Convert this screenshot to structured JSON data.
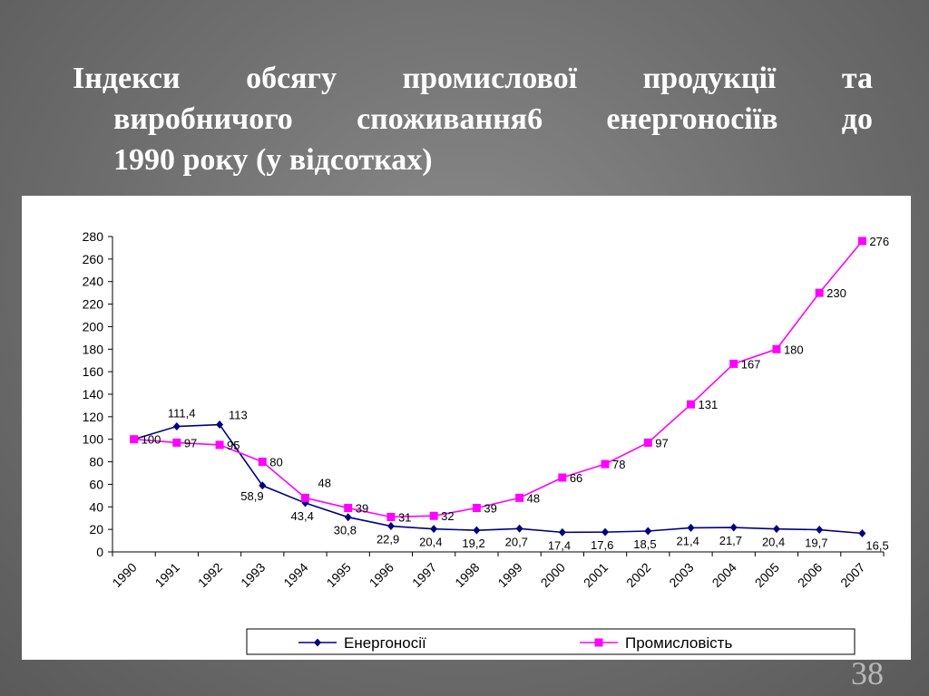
{
  "slide": {
    "title_line1": "Індекси обсягу промислової продукції та",
    "title_line2": "виробничого споживання6 енергоносіїв до",
    "title_line3": "1990 року (у відсотках)",
    "page_number": "38"
  },
  "colors": {
    "energy": "#000080",
    "industry": "#ff00ff"
  },
  "chart_data": {
    "type": "line",
    "title": "",
    "xlabel": "",
    "ylabel": "",
    "categories": [
      "1990",
      "1991",
      "1992",
      "1993",
      "1994",
      "1995",
      "1996",
      "1997",
      "1998",
      "1999",
      "2000",
      "2001",
      "2002",
      "2003",
      "2004",
      "2005",
      "2006",
      "2007"
    ],
    "ylim": [
      0,
      280
    ],
    "yticks": [
      0,
      20,
      40,
      60,
      80,
      100,
      120,
      140,
      160,
      180,
      200,
      220,
      240,
      260,
      280
    ],
    "legend_position": "bottom",
    "series": [
      {
        "name": "Енергоносії",
        "color": "#000080",
        "marker": "diamond",
        "values": [
          100,
          111.4,
          113,
          58.9,
          43.4,
          30.8,
          22.9,
          20.4,
          19.2,
          20.7,
          17.4,
          17.6,
          18.5,
          21.4,
          21.7,
          20.4,
          19.7,
          16.5
        ],
        "labels": [
          "",
          "111,4",
          "113",
          "58,9",
          "43,4",
          "30,8",
          "22,9",
          "20,4",
          "19,2",
          "20,7",
          "17,4",
          "17,6",
          "18,5",
          "21,4",
          "21,7",
          "20,4",
          "19,7",
          "16,5"
        ]
      },
      {
        "name": "Промисловість",
        "color": "#ff00ff",
        "marker": "square",
        "values": [
          100,
          97,
          95,
          80,
          48,
          39,
          31,
          32,
          39,
          48,
          66,
          78,
          97,
          131,
          167,
          180,
          230,
          276
        ],
        "labels": [
          "100",
          "97",
          "95",
          "80",
          "48",
          "39",
          "31",
          "32",
          "39",
          "48",
          "66",
          "78",
          "97",
          "131",
          "167",
          "180",
          "230",
          "276"
        ]
      }
    ]
  }
}
